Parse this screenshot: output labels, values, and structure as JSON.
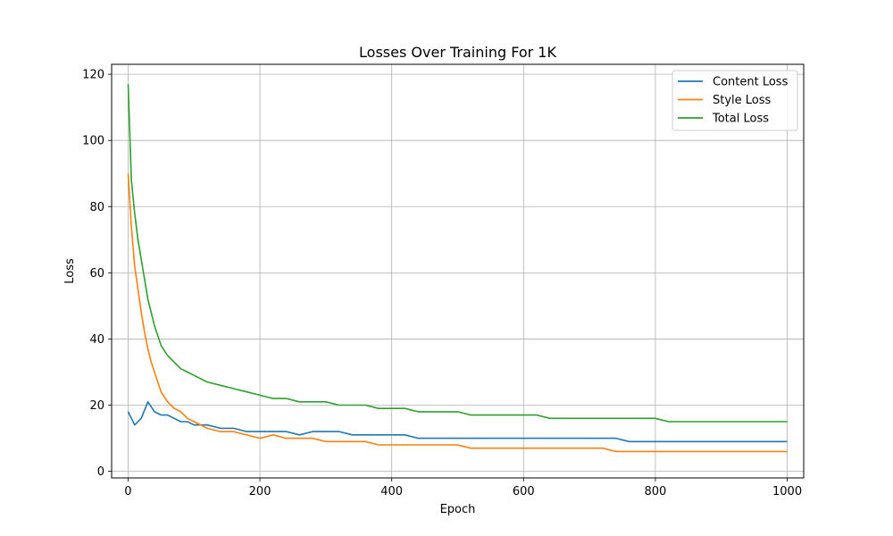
{
  "chart_data": {
    "type": "line",
    "title": "Losses Over Training For 1K",
    "xlabel": "Epoch",
    "ylabel": "Loss",
    "xlim": [
      -25,
      1025
    ],
    "ylim": [
      -2,
      123
    ],
    "xticks": [
      0,
      200,
      400,
      600,
      800,
      1000
    ],
    "yticks": [
      0,
      20,
      40,
      60,
      80,
      100,
      120
    ],
    "grid": true,
    "legend_position": "top-right",
    "series": [
      {
        "name": "Content Loss",
        "color": "#1f77b4",
        "x": [
          0,
          10,
          20,
          30,
          40,
          50,
          60,
          70,
          80,
          90,
          100,
          120,
          140,
          160,
          180,
          200,
          220,
          240,
          260,
          280,
          300,
          320,
          340,
          360,
          380,
          400,
          420,
          440,
          460,
          480,
          500,
          520,
          540,
          560,
          580,
          600,
          620,
          640,
          660,
          680,
          700,
          720,
          740,
          760,
          780,
          800,
          820,
          840,
          860,
          880,
          900,
          920,
          940,
          960,
          980,
          1000
        ],
        "y": [
          18,
          14,
          16,
          21,
          18,
          17,
          17,
          16,
          15,
          15,
          14,
          14,
          13,
          13,
          12,
          12,
          12,
          12,
          11,
          12,
          12,
          12,
          11,
          11,
          11,
          11,
          11,
          10,
          10,
          10,
          10,
          10,
          10,
          10,
          10,
          10,
          10,
          10,
          10,
          10,
          10,
          10,
          10,
          9,
          9,
          9,
          9,
          9,
          9,
          9,
          9,
          9,
          9,
          9,
          9,
          9
        ]
      },
      {
        "name": "Style Loss",
        "color": "#ff7f0e",
        "x": [
          0,
          5,
          10,
          15,
          20,
          25,
          30,
          35,
          40,
          50,
          60,
          70,
          80,
          90,
          100,
          120,
          140,
          160,
          180,
          200,
          220,
          240,
          260,
          280,
          300,
          320,
          340,
          360,
          380,
          400,
          420,
          440,
          460,
          480,
          500,
          520,
          540,
          560,
          580,
          600,
          620,
          640,
          660,
          680,
          700,
          720,
          740,
          760,
          780,
          800,
          820,
          840,
          860,
          880,
          900,
          920,
          940,
          960,
          980,
          1000
        ],
        "y": [
          90,
          74,
          62,
          55,
          48,
          42,
          37,
          33,
          30,
          24,
          21,
          19,
          18,
          16,
          15,
          13,
          12,
          12,
          11,
          10,
          11,
          10,
          10,
          10,
          9,
          9,
          9,
          9,
          8,
          8,
          8,
          8,
          8,
          8,
          8,
          7,
          7,
          7,
          7,
          7,
          7,
          7,
          7,
          7,
          7,
          7,
          6,
          6,
          6,
          6,
          6,
          6,
          6,
          6,
          6,
          6,
          6,
          6,
          6,
          6
        ]
      },
      {
        "name": "Total Loss",
        "color": "#2ca02c",
        "x": [
          0,
          5,
          10,
          15,
          20,
          25,
          30,
          35,
          40,
          50,
          60,
          70,
          80,
          90,
          100,
          120,
          140,
          160,
          180,
          200,
          220,
          240,
          260,
          280,
          300,
          320,
          340,
          360,
          380,
          400,
          420,
          440,
          460,
          480,
          500,
          520,
          540,
          560,
          580,
          600,
          620,
          640,
          660,
          680,
          700,
          720,
          740,
          760,
          780,
          800,
          820,
          840,
          860,
          880,
          900,
          920,
          940,
          960,
          980,
          1000
        ],
        "y": [
          117,
          88,
          78,
          70,
          64,
          58,
          52,
          48,
          44,
          38,
          35,
          33,
          31,
          30,
          29,
          27,
          26,
          25,
          24,
          23,
          22,
          22,
          21,
          21,
          21,
          20,
          20,
          20,
          19,
          19,
          19,
          18,
          18,
          18,
          18,
          17,
          17,
          17,
          17,
          17,
          17,
          16,
          16,
          16,
          16,
          16,
          16,
          16,
          16,
          16,
          15,
          15,
          15,
          15,
          15,
          15,
          15,
          15,
          15,
          15
        ]
      }
    ]
  }
}
